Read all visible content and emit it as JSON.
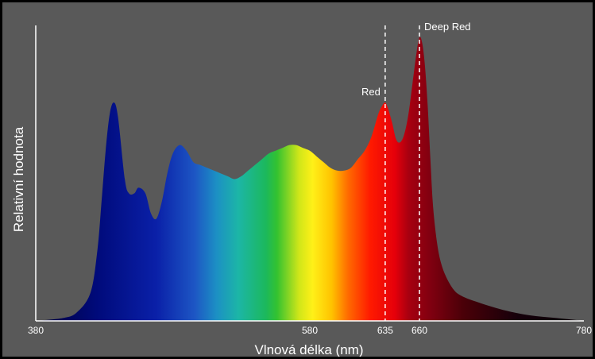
{
  "chart_data": {
    "type": "area",
    "title": "",
    "xlabel": "Vlnová délka (nm)",
    "ylabel": "Relativní hodnota",
    "xlim": [
      380,
      780
    ],
    "ylim": [
      0,
      1
    ],
    "grid": false,
    "legend": "none",
    "x_ticks": [
      {
        "value": 380,
        "label": "380"
      },
      {
        "value": 580,
        "label": "580"
      },
      {
        "value": 635,
        "label": "635"
      },
      {
        "value": 660,
        "label": "660"
      },
      {
        "value": 780,
        "label": "780"
      }
    ],
    "series": [
      {
        "x": [
          380,
          400,
          410,
          420,
          425,
          428,
          431,
          434,
          437,
          440,
          445,
          448,
          452,
          455,
          460,
          464,
          468,
          472,
          476,
          480,
          485,
          490,
          495,
          500,
          505,
          510,
          515,
          520,
          525,
          530,
          535,
          540,
          545,
          550,
          555,
          560,
          565,
          570,
          575,
          580,
          585,
          590,
          595,
          600,
          605,
          610,
          615,
          620,
          625,
          630,
          633,
          635,
          637,
          640,
          643,
          646,
          649,
          652,
          655,
          658,
          660,
          662,
          664,
          666,
          668,
          670,
          673,
          676,
          680,
          685,
          690,
          700,
          720,
          740,
          760,
          780
        ],
        "y": [
          0.0,
          0.01,
          0.03,
          0.1,
          0.25,
          0.42,
          0.6,
          0.73,
          0.77,
          0.72,
          0.5,
          0.45,
          0.45,
          0.47,
          0.45,
          0.38,
          0.36,
          0.42,
          0.52,
          0.59,
          0.62,
          0.6,
          0.56,
          0.55,
          0.54,
          0.53,
          0.52,
          0.51,
          0.5,
          0.51,
          0.53,
          0.55,
          0.57,
          0.59,
          0.6,
          0.61,
          0.62,
          0.62,
          0.61,
          0.6,
          0.58,
          0.56,
          0.54,
          0.53,
          0.53,
          0.54,
          0.57,
          0.6,
          0.65,
          0.73,
          0.76,
          0.77,
          0.75,
          0.7,
          0.64,
          0.63,
          0.66,
          0.73,
          0.84,
          0.95,
          1.0,
          0.98,
          0.9,
          0.76,
          0.57,
          0.4,
          0.27,
          0.2,
          0.15,
          0.11,
          0.09,
          0.07,
          0.04,
          0.02,
          0.01,
          0.0
        ]
      }
    ],
    "annotations": [
      {
        "x": 635,
        "label": "Red",
        "side": "left"
      },
      {
        "x": 660,
        "label": "Deep Red",
        "side": "right"
      }
    ],
    "colors": {
      "background": "#595959",
      "axis": "#ffffff",
      "frame": "#000000",
      "gradient": [
        "#00003a",
        "#000a7a",
        "#0a20a8",
        "#1d56c4",
        "#1c90c4",
        "#1cb6a6",
        "#1cb85c",
        "#33c230",
        "#cfe619",
        "#fff018",
        "#ffc200",
        "#ff6a00",
        "#ff1a00",
        "#e6000a",
        "#a80010",
        "#800010",
        "#4a0008",
        "#14000a",
        "#0a0006"
      ]
    }
  }
}
